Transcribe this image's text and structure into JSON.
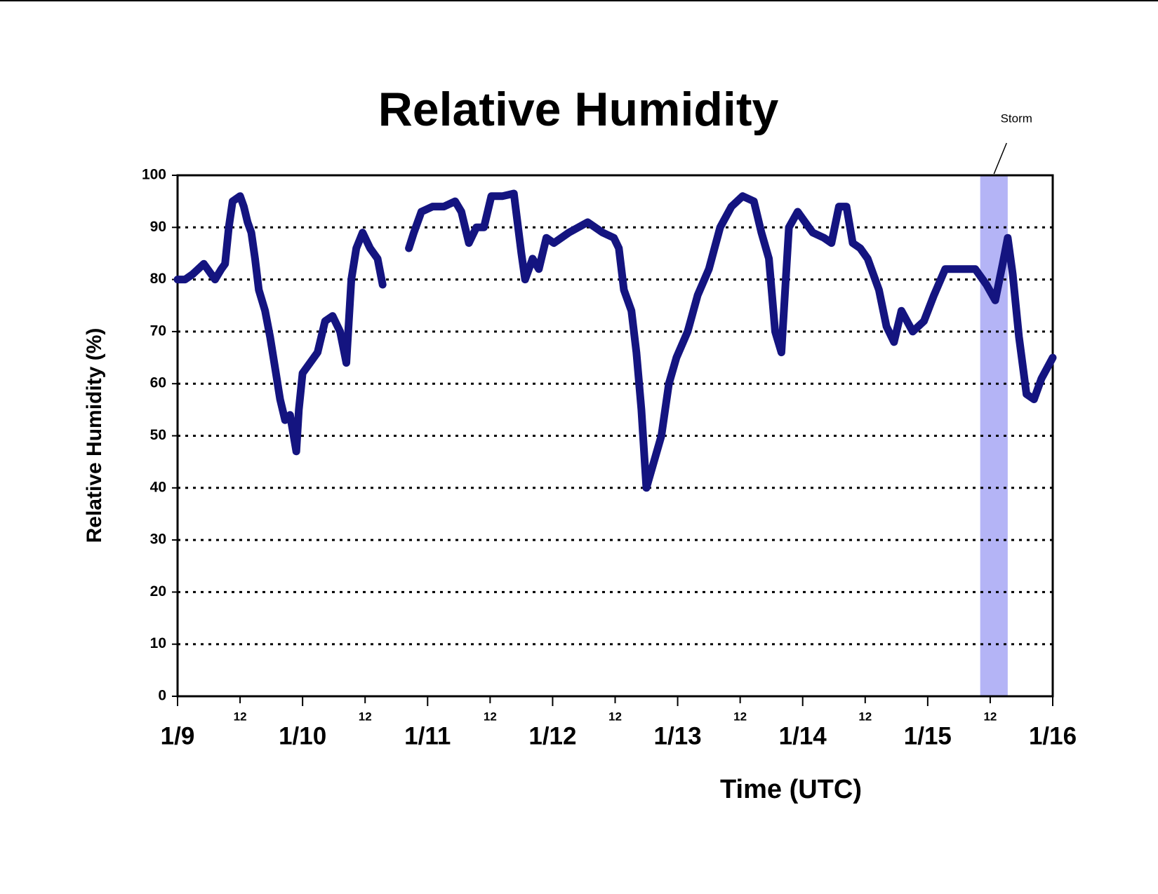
{
  "chart_data": {
    "type": "line",
    "title": "Relative Humidity",
    "x_label": "Time (UTC)",
    "y_label": "Relative Humidity (%)",
    "series": [
      {
        "name": "Relative Humidity",
        "color": "#141480",
        "x": [
          0,
          0.06,
          0.12,
          0.21,
          0.3,
          0.35,
          0.38,
          0.41,
          0.44,
          0.5,
          0.53,
          0.56,
          0.59,
          0.62,
          0.65,
          0.7,
          0.74,
          0.78,
          0.82,
          0.86,
          0.9,
          0.95,
          0.97,
          1.0,
          1.06,
          1.12,
          1.18,
          1.24,
          1.3,
          1.35,
          1.39,
          1.43,
          1.48,
          1.54,
          1.6,
          1.64,
          1.75,
          1.85,
          1.89,
          1.95,
          2.04,
          2.13,
          2.22,
          2.27,
          2.33,
          2.39,
          2.45,
          2.51,
          2.6,
          2.69,
          2.75,
          2.78,
          2.84,
          2.89,
          2.95,
          3.01,
          3.13,
          3.28,
          3.4,
          3.49,
          3.53,
          3.57,
          3.63,
          3.67,
          3.71,
          3.75,
          3.81,
          3.87,
          3.93,
          3.99,
          4.08,
          4.16,
          4.25,
          4.34,
          4.43,
          4.52,
          4.61,
          4.67,
          4.73,
          4.78,
          4.83,
          4.89,
          4.96,
          5.02,
          5.08,
          5.17,
          5.23,
          5.29,
          5.35,
          5.4,
          5.46,
          5.52,
          5.61,
          5.67,
          5.73,
          5.79,
          5.88,
          5.97,
          6.05,
          6.14,
          6.26,
          6.38,
          6.47,
          6.54,
          6.6,
          6.64,
          6.68,
          6.73,
          6.79,
          6.85,
          6.91,
          7.0
        ],
        "values": [
          80,
          80,
          81,
          83,
          80,
          82,
          83,
          90,
          95,
          96,
          94,
          91,
          89,
          84,
          78,
          74,
          69,
          63,
          57,
          53,
          54,
          47,
          55,
          62,
          64,
          66,
          72,
          73,
          70,
          64,
          80,
          86,
          89,
          86,
          84,
          79,
          null,
          86,
          89,
          93,
          94,
          94,
          95,
          93,
          87,
          90,
          90,
          96,
          96,
          96.5,
          85,
          80,
          84,
          82,
          88,
          87,
          89,
          91,
          89,
          88,
          86,
          78,
          74,
          66,
          55,
          40,
          45,
          50,
          60,
          65,
          70,
          77,
          82,
          90,
          94,
          96,
          95,
          89,
          84,
          70,
          66,
          90,
          93,
          91,
          89,
          88,
          87,
          94,
          94,
          87,
          86,
          84,
          78,
          71,
          68,
          74,
          70,
          72,
          77,
          82,
          82,
          82,
          79,
          76,
          83,
          88,
          81,
          69,
          58,
          57,
          61,
          65
        ]
      }
    ],
    "xlim": [
      0,
      7
    ],
    "xticks": [
      {
        "value": 0,
        "label": "1/9"
      },
      {
        "value": 0.5,
        "label": "12"
      },
      {
        "value": 1,
        "label": "1/10"
      },
      {
        "value": 1.5,
        "label": "12"
      },
      {
        "value": 2,
        "label": "1/11"
      },
      {
        "value": 2.5,
        "label": "12"
      },
      {
        "value": 3,
        "label": "1/12"
      },
      {
        "value": 3.5,
        "label": "12"
      },
      {
        "value": 4,
        "label": "1/13"
      },
      {
        "value": 4.5,
        "label": "12"
      },
      {
        "value": 5,
        "label": "1/14"
      },
      {
        "value": 5.5,
        "label": "12"
      },
      {
        "value": 6,
        "label": "1/15"
      },
      {
        "value": 6.5,
        "label": "12"
      },
      {
        "value": 7,
        "label": "1/16"
      }
    ],
    "ylim": [
      0,
      100
    ],
    "yticks": [
      0,
      10,
      20,
      30,
      40,
      50,
      60,
      70,
      80,
      90,
      100
    ],
    "grid": true,
    "shaded_region": {
      "label": "Storm",
      "x": [
        6.42,
        6.64
      ],
      "color": "#b4b4f6"
    }
  }
}
